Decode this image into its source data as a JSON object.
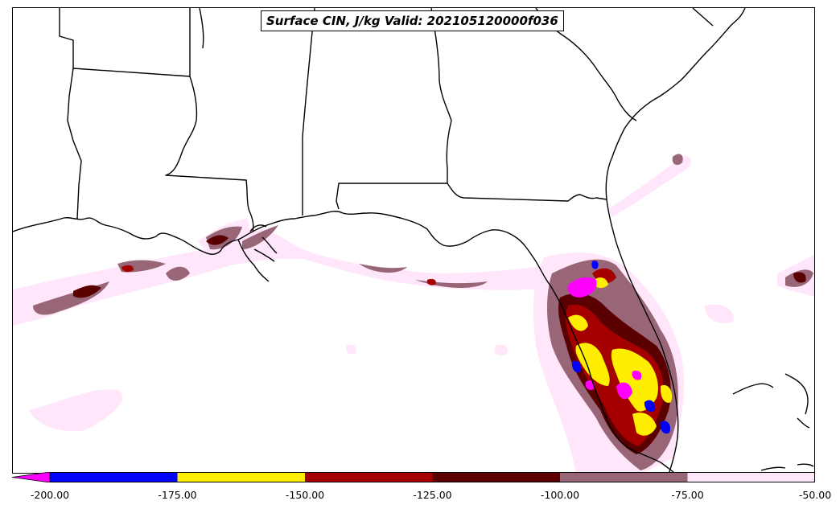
{
  "title": "Surface CIN, J/kg Valid: 202105120000f036",
  "colorbar": {
    "extend": "min",
    "levels": [
      "-200.00",
      "-175.00",
      "-150.00",
      "-125.00",
      "-100.00",
      "-75.00",
      "-50.00"
    ],
    "colors": [
      "#ff00ff",
      "#0000ff",
      "#ffee00",
      "#a50000",
      "#5a0000",
      "#996677",
      "#ffe6fb"
    ]
  },
  "map": {
    "region": "US Gulf Coast / Florida",
    "land_color": "#ffffff",
    "ocean_color": "#ffffff",
    "boundary_color": "#000000"
  }
}
